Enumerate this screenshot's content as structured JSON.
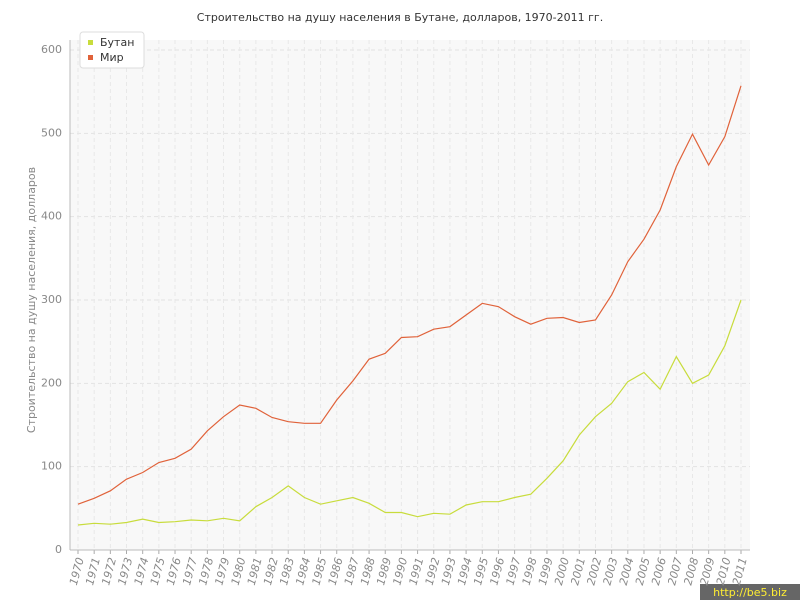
{
  "chart_data": {
    "type": "line",
    "title": "Строительство на душу населения в Бутане, долларов, 1970-2011 гг.",
    "ylabel": "Строительство на душу населения, долларов",
    "categories": [
      "1970",
      "1971",
      "1972",
      "1973",
      "1974",
      "1975",
      "1976",
      "1977",
      "1978",
      "1979",
      "1980",
      "1981",
      "1982",
      "1983",
      "1984",
      "1985",
      "1986",
      "1987",
      "1988",
      "1989",
      "1990",
      "1991",
      "1992",
      "1993",
      "1994",
      "1995",
      "1996",
      "1997",
      "1998",
      "1999",
      "2000",
      "2001",
      "2002",
      "2003",
      "2004",
      "2005",
      "2006",
      "2007",
      "2008",
      "2009",
      "2010",
      "2011"
    ],
    "series": [
      {
        "name": "Бутан",
        "color": "#c8dc3c",
        "values": [
          30,
          32,
          31,
          33,
          37,
          33,
          34,
          36,
          35,
          38,
          35,
          52,
          63,
          77,
          63,
          55,
          59,
          63,
          56,
          45,
          45,
          40,
          44,
          43,
          54,
          58,
          58,
          63,
          67,
          86,
          107,
          138,
          160,
          176,
          202,
          213,
          193,
          232,
          200,
          210,
          245,
          300
        ]
      },
      {
        "name": "Мир",
        "color": "#e0623a",
        "values": [
          55,
          62,
          71,
          85,
          93,
          105,
          110,
          121,
          143,
          160,
          174,
          170,
          159,
          154,
          152,
          152,
          180,
          203,
          229,
          236,
          255,
          256,
          265,
          268,
          282,
          296,
          292,
          280,
          271,
          278,
          279,
          273,
          276,
          306,
          346,
          373,
          408,
          460,
          499,
          462,
          496,
          557
        ]
      }
    ],
    "ylim": [
      0,
      600
    ],
    "yticks": [
      0,
      100,
      200,
      300,
      400,
      500,
      600
    ],
    "grid": true,
    "legend": "top-left",
    "watermark": "http://be5.biz"
  }
}
